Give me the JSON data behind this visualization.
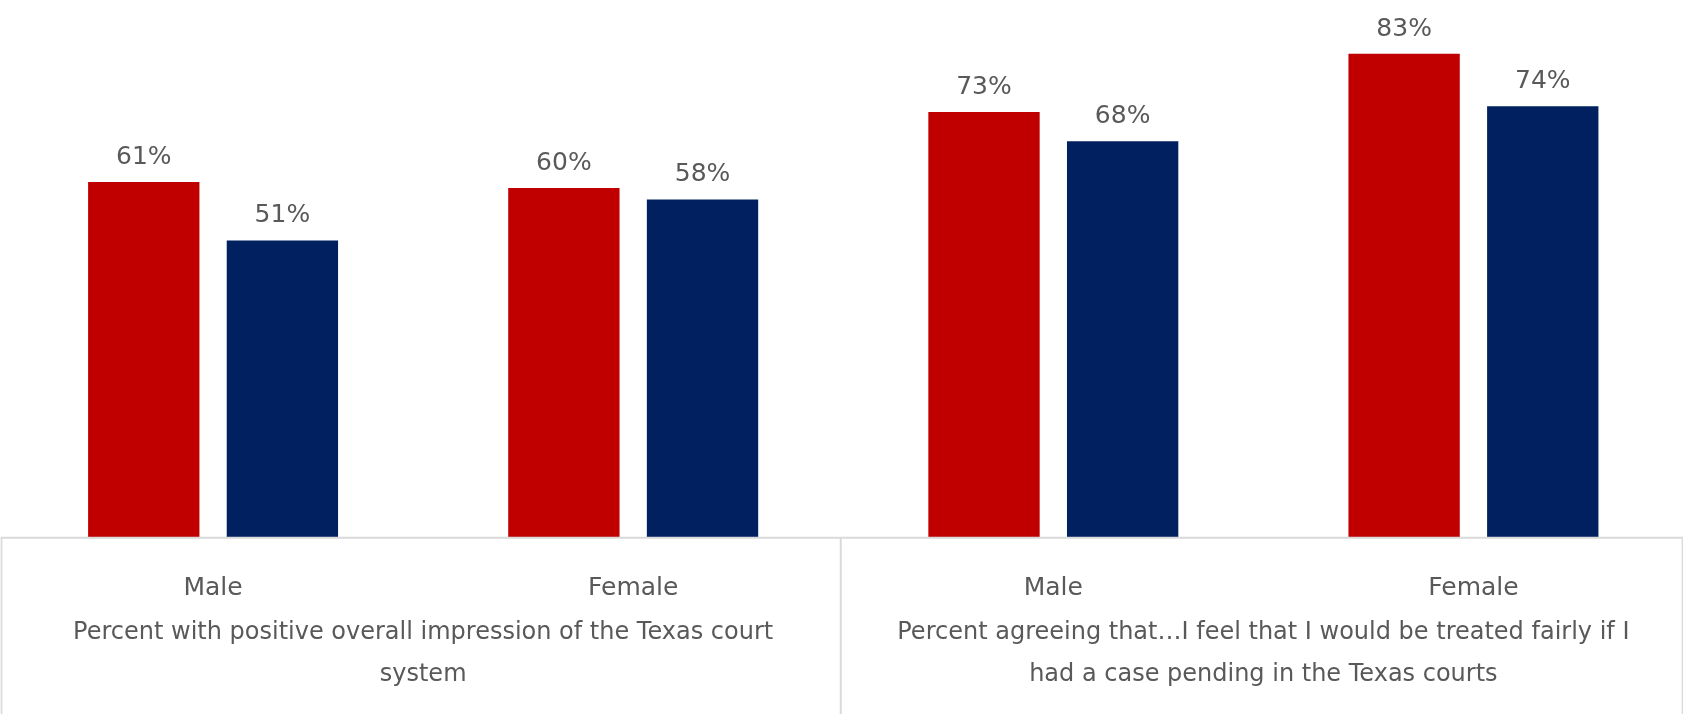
{
  "chart_data": {
    "type": "bar",
    "categories": [
      "Male",
      "Female",
      "Male",
      "Female"
    ],
    "series": [
      {
        "color": "#c00000",
        "values": [
          61,
          60,
          73,
          83
        ],
        "value_labels": [
          "61%",
          "60%",
          "73%",
          "83%"
        ]
      },
      {
        "color": "#002060",
        "values": [
          51,
          58,
          68,
          74
        ],
        "value_labels": [
          "51%",
          "58%",
          "68%",
          "74%"
        ]
      }
    ],
    "annotations": [
      "Percent with positive overall impression of the Texas court system",
      "Percent agreeing that…I feel that I would be treated fairly if I had a case pending in the Texas courts"
    ],
    "grid": false
  }
}
